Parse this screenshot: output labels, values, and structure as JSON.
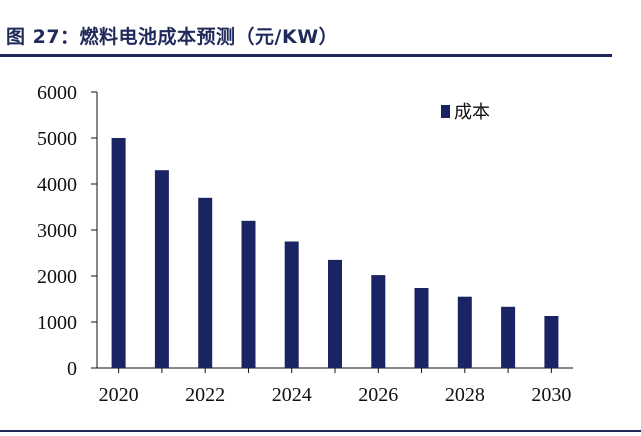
{
  "title": "图 27：燃料电池成本预测（元/KW）",
  "colors": {
    "bar": "#1b2463",
    "axis": "#111111",
    "rule": "#1f2a5a"
  },
  "chart_data": {
    "type": "bar",
    "title": "图 27：燃料电池成本预测（元/KW）",
    "categories": [
      "2020",
      "2021",
      "2022",
      "2023",
      "2024",
      "2025",
      "2026",
      "2027",
      "2028",
      "2029",
      "2030"
    ],
    "x_tick_labels": [
      "2020",
      "2022",
      "2024",
      "2026",
      "2028",
      "2030"
    ],
    "series": [
      {
        "name": "成本",
        "values": [
          5000,
          4300,
          3700,
          3200,
          2750,
          2350,
          2020,
          1740,
          1550,
          1330,
          1130
        ]
      }
    ],
    "ylim": [
      0,
      6000
    ],
    "y_ticks": [
      0,
      1000,
      2000,
      3000,
      4000,
      5000,
      6000
    ],
    "legend_position": "top-right",
    "grid": false
  }
}
